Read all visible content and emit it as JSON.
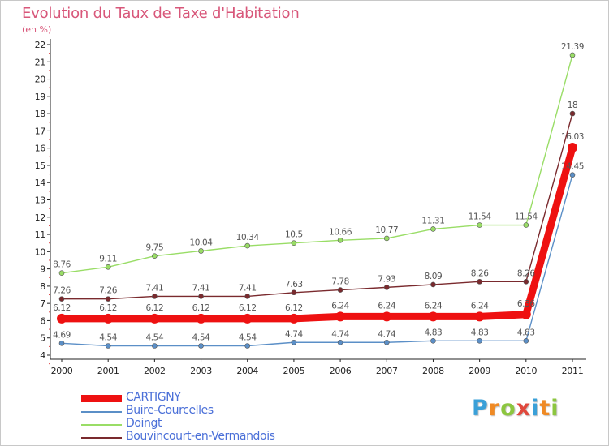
{
  "header": {
    "title": "Evolution du Taux de Taxe d'Habitation",
    "subtitle": "(en %)"
  },
  "brand": {
    "logo_text": "Proxiti",
    "letter_colors": [
      "#3aa0d8",
      "#f08a24",
      "#8cc63f",
      "#e0483c",
      "#3aa0d8",
      "#f08a24",
      "#8cc63f"
    ]
  },
  "chart_data": {
    "type": "line",
    "title": "Evolution du Taux de Taxe d'Habitation",
    "ylabel": "(en %)",
    "xlabel": "",
    "x": [
      "2000",
      "2001",
      "2002",
      "2003",
      "2004",
      "2005",
      "2006",
      "2007",
      "2008",
      "2009",
      "2010",
      "2011"
    ],
    "ylim": [
      4,
      22
    ],
    "yticks": [
      4,
      5,
      6,
      7,
      8,
      9,
      10,
      11,
      12,
      13,
      14,
      15,
      16,
      17,
      18,
      19,
      20,
      21,
      22
    ],
    "grid": false,
    "legend_position": "bottom-left",
    "series": [
      {
        "name": "CARTIGNY",
        "color": "#ee1111",
        "values": [
          6.12,
          6.12,
          6.12,
          6.12,
          6.12,
          6.12,
          6.24,
          6.24,
          6.24,
          6.24,
          6.36,
          16.03
        ],
        "labels": [
          "6.12",
          "6.12",
          "6.12",
          "6.12",
          "6.12",
          "6.12",
          "6.24",
          "6.24",
          "6.24",
          "6.24",
          "6.36",
          "16.03"
        ]
      },
      {
        "name": "Buire-Courcelles",
        "color": "#5b8fc7",
        "values": [
          4.69,
          4.54,
          4.54,
          4.54,
          4.54,
          4.74,
          4.74,
          4.74,
          4.83,
          4.83,
          4.83,
          14.45
        ],
        "labels": [
          "4.69",
          "4.54",
          "4.54",
          "4.54",
          "4.54",
          "4.74",
          "4.74",
          "4.74",
          "4.83",
          "4.83",
          "4.83",
          "14.45"
        ]
      },
      {
        "name": "Doingt",
        "color": "#99dd66",
        "values": [
          8.76,
          9.11,
          9.75,
          10.04,
          10.34,
          10.5,
          10.66,
          10.77,
          11.31,
          11.54,
          11.54,
          21.39
        ],
        "labels": [
          "8.76",
          "9.11",
          "9.75",
          "10.04",
          "10.34",
          "10.5",
          "10.66",
          "10.77",
          "11.31",
          "11.54",
          "11.54",
          "21.39"
        ]
      },
      {
        "name": "Bouvincourt-en-Vermandois",
        "color": "#7a2a2e",
        "values": [
          7.26,
          7.26,
          7.41,
          7.41,
          7.41,
          7.63,
          7.78,
          7.93,
          8.09,
          8.26,
          8.26,
          18
        ],
        "labels": [
          "7.26",
          "7.26",
          "7.41",
          "7.41",
          "7.41",
          "7.63",
          "7.78",
          "7.93",
          "8.09",
          "8.26",
          "8.26",
          "18"
        ]
      }
    ]
  }
}
